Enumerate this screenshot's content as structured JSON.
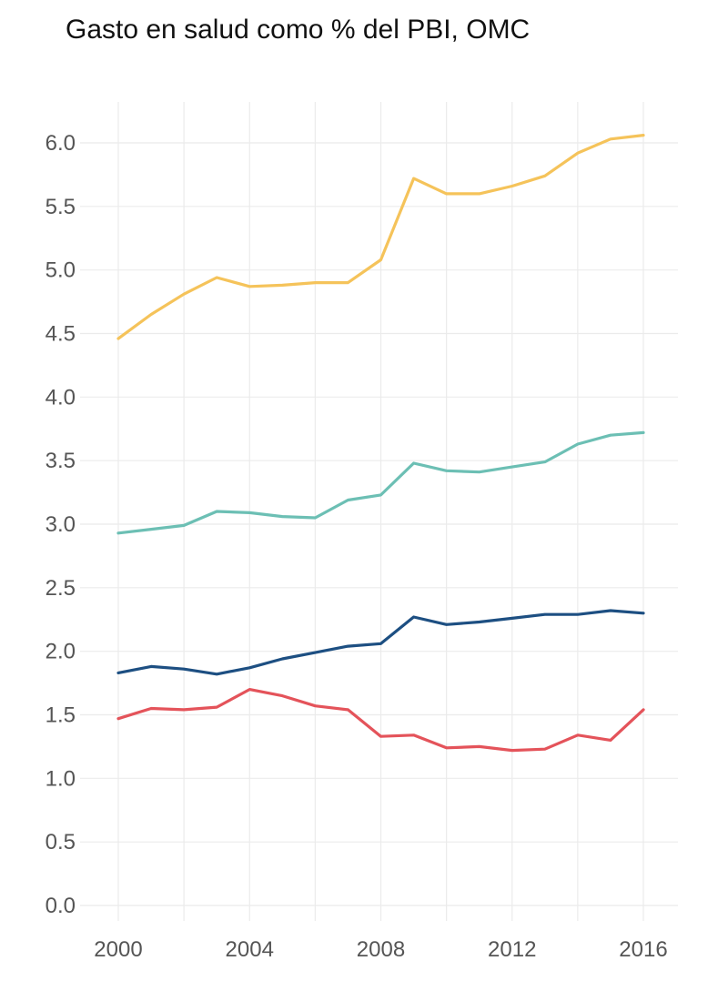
{
  "chart_data": {
    "type": "line",
    "title": "Gasto en salud como % del PBI, OMC",
    "xlabel": "",
    "ylabel": "",
    "x": [
      2000,
      2001,
      2002,
      2003,
      2004,
      2005,
      2006,
      2007,
      2008,
      2009,
      2010,
      2011,
      2012,
      2013,
      2014,
      2015,
      2016
    ],
    "xlim": [
      1999,
      2016.5
    ],
    "ylim": [
      -0.12,
      6.3
    ],
    "x_ticks": [
      2000,
      2004,
      2008,
      2012,
      2016
    ],
    "y_ticks": [
      0.0,
      0.5,
      1.0,
      1.5,
      2.0,
      2.5,
      3.0,
      3.5,
      4.0,
      4.5,
      5.0,
      5.5,
      6.0
    ],
    "x_tick_labels": [
      "2000",
      "2004",
      "2008",
      "2012",
      "2016"
    ],
    "y_tick_labels": [
      "0.0",
      "0.5",
      "1.0",
      "1.5",
      "2.0",
      "2.5",
      "3.0",
      "3.5",
      "4.0",
      "4.5",
      "5.0",
      "5.5",
      "6.0"
    ],
    "grid": true,
    "legend": "none",
    "series": [
      {
        "color": "#f5c35a",
        "values": [
          4.46,
          4.65,
          4.81,
          4.94,
          4.87,
          4.88,
          4.9,
          4.9,
          5.08,
          5.72,
          5.6,
          5.6,
          5.66,
          5.74,
          5.92,
          6.03,
          6.06
        ]
      },
      {
        "color": "#6cbfb4",
        "values": [
          2.93,
          2.96,
          2.99,
          3.1,
          3.09,
          3.06,
          3.05,
          3.19,
          3.23,
          3.48,
          3.42,
          3.41,
          3.45,
          3.49,
          3.63,
          3.7,
          3.72
        ]
      },
      {
        "color": "#1d4f82",
        "values": [
          1.83,
          1.88,
          1.86,
          1.82,
          1.87,
          1.94,
          1.99,
          2.04,
          2.06,
          2.27,
          2.21,
          2.23,
          2.26,
          2.29,
          2.29,
          2.32,
          2.3
        ]
      },
      {
        "color": "#e4535a",
        "values": [
          1.47,
          1.55,
          1.54,
          1.56,
          1.7,
          1.65,
          1.57,
          1.54,
          1.33,
          1.34,
          1.24,
          1.25,
          1.22,
          1.23,
          1.34,
          1.3,
          1.54
        ]
      }
    ]
  }
}
